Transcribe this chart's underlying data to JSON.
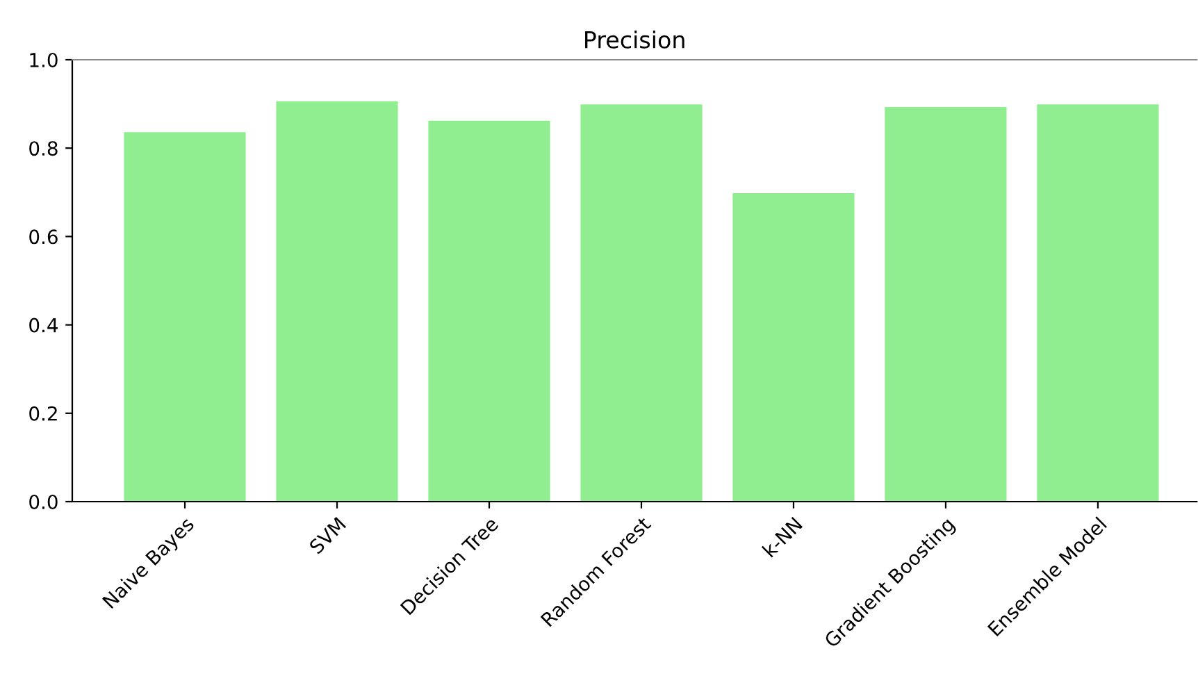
{
  "chart_data": {
    "type": "bar",
    "title": "Precision",
    "categories": [
      "Naive Bayes",
      "SVM",
      "Decision Tree",
      "Random Forest",
      "k-NN",
      "Gradient Boosting",
      "Ensemble Model"
    ],
    "values": [
      0.836,
      0.906,
      0.862,
      0.899,
      0.698,
      0.893,
      0.899
    ],
    "color": "#90ee90",
    "ylim": [
      0,
      1.0
    ],
    "yticks": [
      {
        "value": 0,
        "label": "0.0"
      },
      {
        "value": 0.2,
        "label": "0.2"
      },
      {
        "value": 0.4,
        "label": "0.4"
      },
      {
        "value": 0.6,
        "label": "0.6"
      },
      {
        "value": 0.8,
        "label": "0.8"
      },
      {
        "value": 1.0,
        "label": "1.0"
      }
    ],
    "grid": false
  }
}
